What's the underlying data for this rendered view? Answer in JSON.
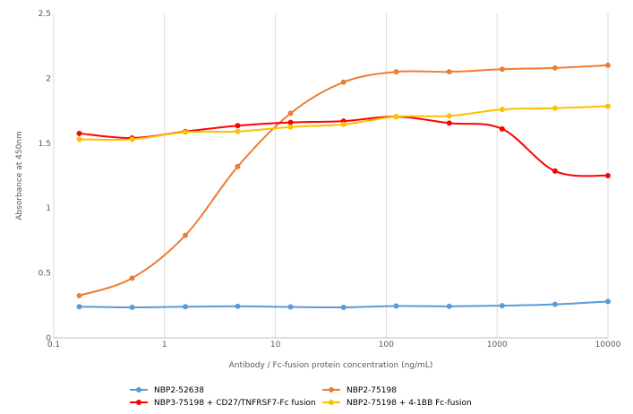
{
  "chart_data": {
    "type": "line",
    "title": "",
    "xlabel": "Antibody / Fc-fusion protein concentration (ng/mL)",
    "ylabel": "Absorbance at 450nm",
    "xscale": "log",
    "xlim": [
      0.1,
      10000
    ],
    "ylim": [
      0,
      2.5
    ],
    "grid": "vertical",
    "legend_position": "bottom",
    "x_ticks": [
      "0.1",
      "1",
      "10",
      "100",
      "1000",
      "10000"
    ],
    "y_ticks": [
      "0",
      "0.5",
      "1",
      "1.5",
      "2",
      "2.5"
    ],
    "x": [
      0.17,
      0.51,
      1.54,
      4.57,
      13.7,
      41.2,
      123,
      370,
      1111,
      3333,
      10000
    ],
    "series": [
      {
        "name": "NBP2-52638",
        "color": "#5b9bd5",
        "values": [
          0.24,
          0.235,
          0.24,
          0.243,
          0.238,
          0.235,
          0.245,
          0.243,
          0.248,
          0.258,
          0.28
        ]
      },
      {
        "name": "NBP2-75198",
        "color": "#ed7d31",
        "values": [
          0.325,
          0.46,
          0.79,
          1.32,
          1.73,
          1.97,
          2.05,
          2.05,
          2.07,
          2.08,
          2.1
        ]
      },
      {
        "name": "NBP3-75198 + CD27/TNFRSF7-Fc fusion",
        "color": "#ff0000",
        "values": [
          1.575,
          1.54,
          1.59,
          1.635,
          1.66,
          1.67,
          1.705,
          1.655,
          1.61,
          1.285,
          1.25
        ]
      },
      {
        "name": "NBP2-75198 + 4-1BB Fc-fusion",
        "color": "#ffc000",
        "values": [
          1.53,
          1.53,
          1.585,
          1.59,
          1.625,
          1.645,
          1.705,
          1.71,
          1.76,
          1.77,
          1.785
        ]
      }
    ]
  }
}
